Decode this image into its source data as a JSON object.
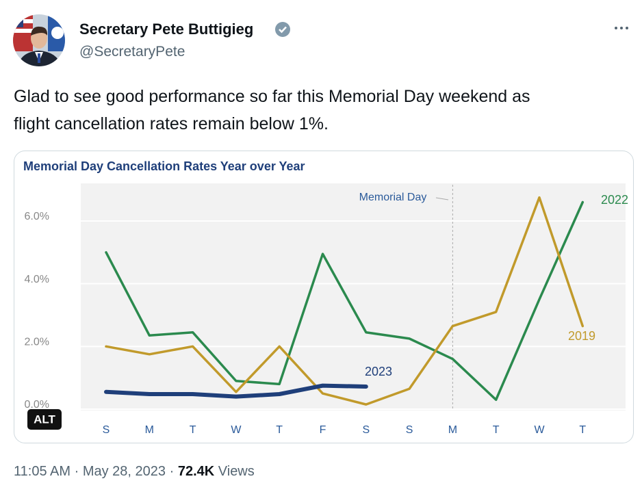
{
  "tweet": {
    "name": "Secretary Pete Buttigieg",
    "handle": "@SecretaryPete",
    "text_lines": [
      "Glad to see good performance so far this Memorial Day weekend as",
      "flight cancellation rates remain below 1%."
    ],
    "time": "11:05 AM",
    "separator": "·",
    "date": "May 28, 2023",
    "views": "72.4K",
    "views_label": "Views",
    "alt_badge": "ALT"
  },
  "chart_data": {
    "type": "line",
    "title": "Memorial Day Cancellation Rates Year over Year",
    "annotation": "Memorial Day",
    "categories": [
      "S",
      "M",
      "T",
      "W",
      "T",
      "F",
      "S",
      "S",
      "M",
      "T",
      "W",
      "T"
    ],
    "series": [
      {
        "name": "2022",
        "color": "#2b8a4e",
        "values": [
          5.0,
          2.35,
          2.45,
          0.9,
          0.8,
          4.95,
          2.45,
          2.25,
          1.6,
          0.3,
          3.5,
          6.6
        ]
      },
      {
        "name": "2019",
        "color": "#c19a2b",
        "values": [
          2.0,
          1.75,
          2.0,
          0.55,
          2.0,
          0.5,
          0.15,
          0.65,
          2.65,
          3.1,
          6.75,
          2.65
        ]
      },
      {
        "name": "2023",
        "color": "#1f3f7a",
        "values": [
          0.55,
          0.48,
          0.48,
          0.4,
          0.48,
          0.75,
          0.72,
          null,
          null,
          null,
          null,
          null
        ]
      }
    ],
    "ylim": [
      0,
      7.2
    ],
    "yticks": [
      {
        "value": 0,
        "label": "0.0%"
      },
      {
        "value": 2,
        "label": "2.0%"
      },
      {
        "value": 4,
        "label": "4.0%"
      },
      {
        "value": 6,
        "label": "6.0%"
      }
    ],
    "grid": true
  }
}
